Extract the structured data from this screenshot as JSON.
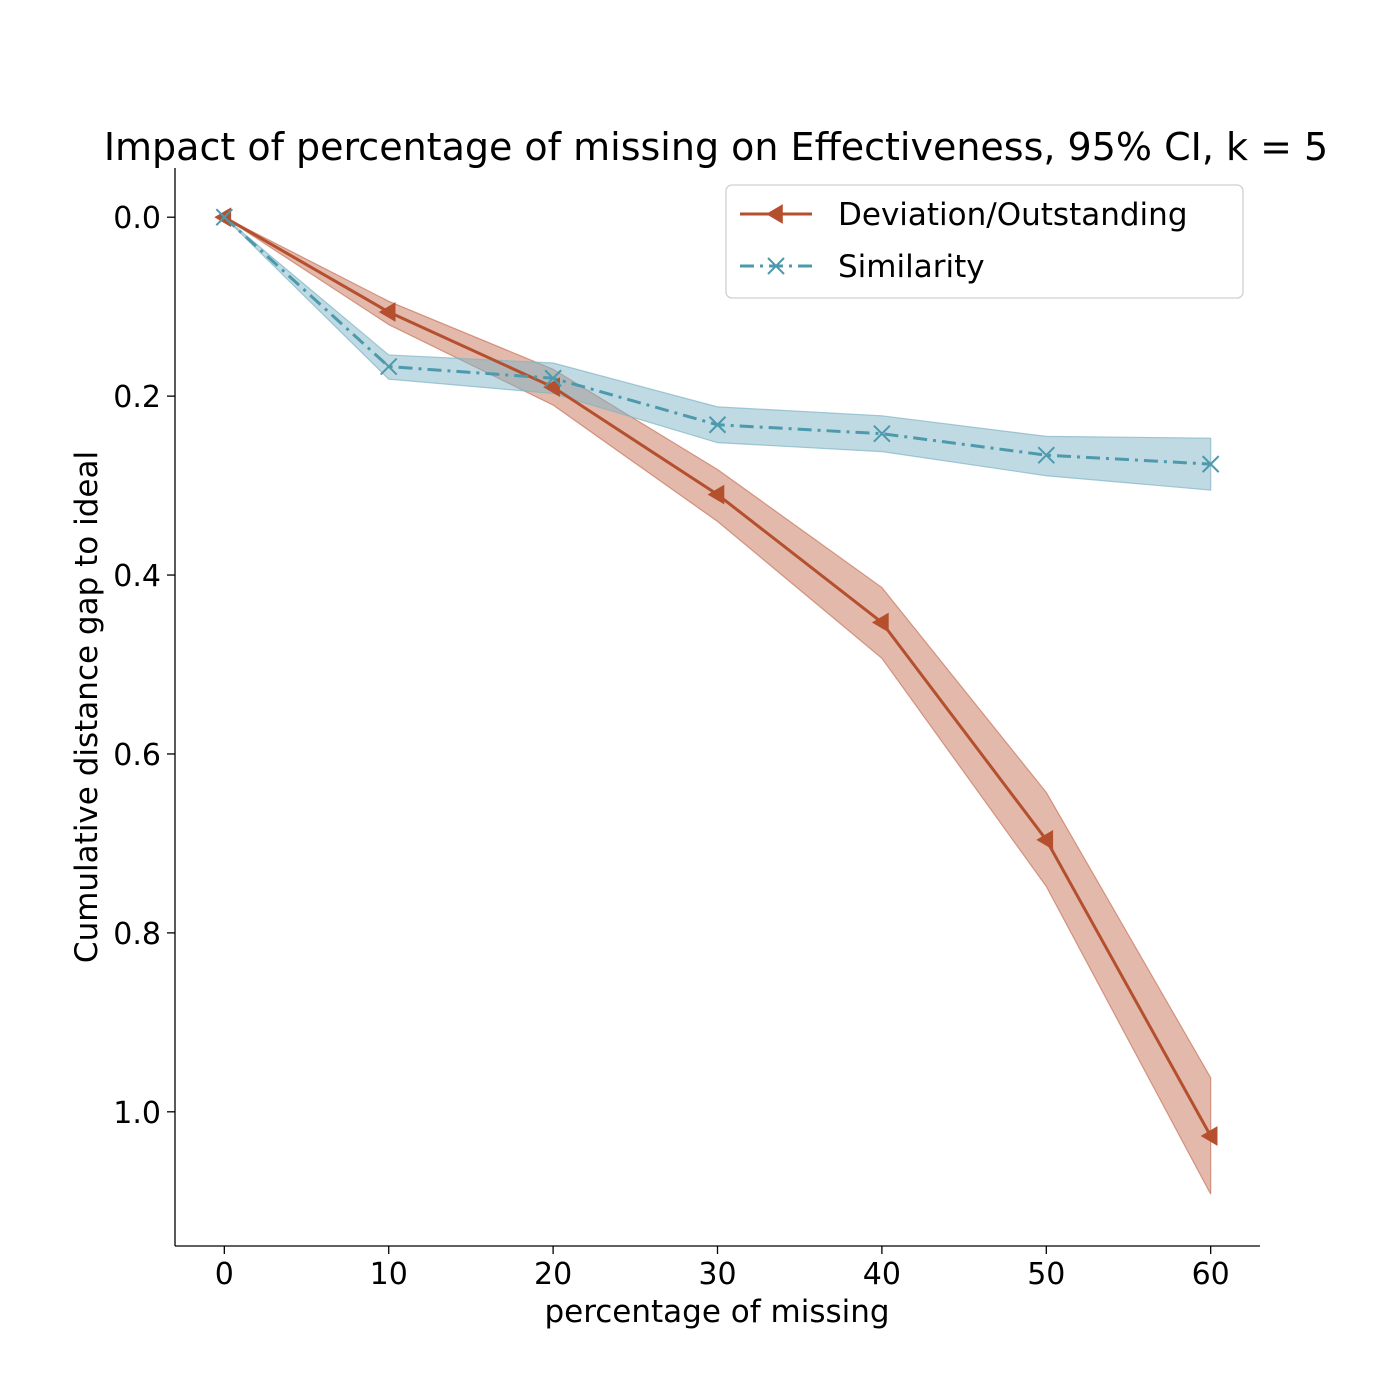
{
  "chart_data": {
    "type": "line",
    "title": "Impact of percentage of missing on Effectiveness, 95% CI, k = 5",
    "xlabel": "percentage of missing",
    "ylabel": "Cumulative distance gap to ideal",
    "xlim": [
      -3,
      63
    ],
    "ylim": [
      1.15,
      -0.055
    ],
    "y_inverted": true,
    "grid": false,
    "legend_position": "top-right",
    "x_ticks": [
      0,
      10,
      20,
      30,
      40,
      50,
      60
    ],
    "y_ticks": [
      0.0,
      0.2,
      0.4,
      0.6,
      0.8,
      1.0
    ],
    "x_tick_labels": [
      "0",
      "10",
      "20",
      "30",
      "40",
      "50",
      "60"
    ],
    "y_tick_labels": [
      "0.0",
      "0.2",
      "0.4",
      "0.6",
      "0.8",
      "1.0"
    ],
    "x": [
      0,
      10,
      20,
      30,
      40,
      50,
      60
    ],
    "series": [
      {
        "name": "Deviation/Outstanding",
        "color": "#b5502f",
        "band_color": "#c8735a",
        "line_style": "solid",
        "marker": "triangle-left",
        "values": [
          0.0,
          0.106,
          0.19,
          0.31,
          0.453,
          0.696,
          1.027
        ],
        "ci_lower": [
          0.0,
          0.094,
          0.17,
          0.282,
          0.414,
          0.643,
          0.962
        ],
        "ci_upper": [
          0.0,
          0.12,
          0.21,
          0.34,
          0.493,
          0.748,
          1.092
        ]
      },
      {
        "name": "Similarity",
        "color": "#4d99ad",
        "band_color": "#7fb5c5",
        "line_style": "dashdot",
        "marker": "x",
        "values": [
          0.0,
          0.167,
          0.18,
          0.232,
          0.242,
          0.266,
          0.276
        ],
        "ci_lower": [
          0.0,
          0.154,
          0.163,
          0.212,
          0.222,
          0.245,
          0.247
        ],
        "ci_upper": [
          0.0,
          0.181,
          0.197,
          0.252,
          0.262,
          0.289,
          0.305
        ]
      }
    ]
  }
}
